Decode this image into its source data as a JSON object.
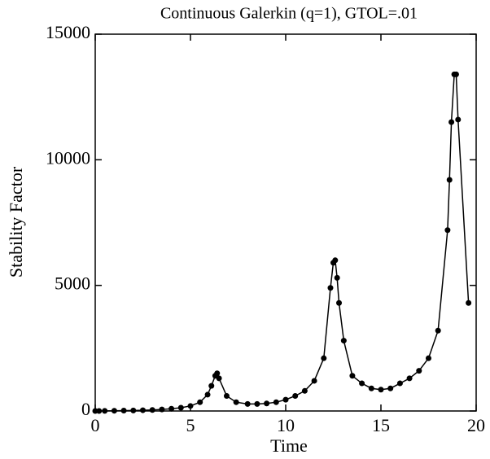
{
  "chart_data": {
    "type": "line",
    "title": "Continuous Galerkin (q=1), GTOL=.01",
    "x_label": "Time",
    "y_label": "Stability Factor",
    "x": [
      0,
      0.2,
      0.5,
      1,
      1.5,
      2,
      2.5,
      3,
      3.5,
      4,
      4.5,
      5,
      5.5,
      5.9,
      6.1,
      6.3,
      6.4,
      6.5,
      6.9,
      7.4,
      8,
      8.5,
      9,
      9.5,
      10,
      10.5,
      11,
      11.5,
      12,
      12.35,
      12.5,
      12.6,
      12.7,
      12.8,
      13.05,
      13.5,
      14,
      14.5,
      15,
      15.5,
      16,
      16.5,
      17,
      17.5,
      18,
      18.5,
      18.6,
      18.7,
      18.85,
      18.95,
      19.05,
      19.6
    ],
    "series": [
      {
        "name": "Stability Factor",
        "color": "#000000",
        "values": [
          0,
          0,
          5,
          10,
          15,
          20,
          30,
          40,
          60,
          90,
          130,
          200,
          350,
          650,
          1000,
          1400,
          1500,
          1300,
          600,
          350,
          280,
          280,
          300,
          350,
          450,
          600,
          800,
          1200,
          2100,
          4900,
          5900,
          6000,
          5300,
          4300,
          2800,
          1400,
          1100,
          900,
          850,
          900,
          1100,
          1300,
          1600,
          2100,
          3200,
          7200,
          9200,
          11500,
          13400,
          13400,
          11600,
          4300
        ]
      }
    ],
    "xlim": [
      0,
      20
    ],
    "xticks": [
      0,
      5,
      10,
      15,
      20
    ],
    "ylim": [
      0,
      15000
    ],
    "yticks": [
      0,
      5000,
      10000,
      15000
    ]
  }
}
